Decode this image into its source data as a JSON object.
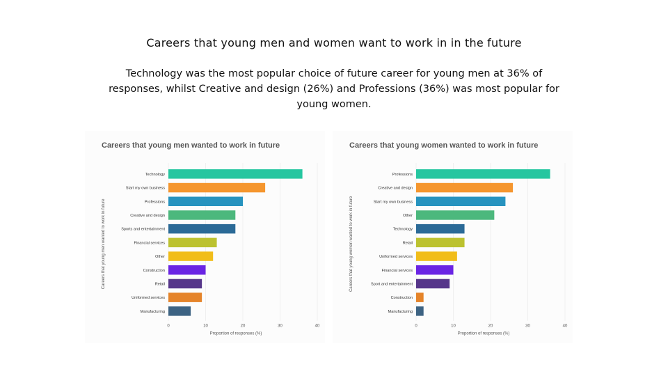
{
  "slide": {
    "title": "Careers that young men and women want to work in in the future",
    "subtitle": "Technology was the most popular choice of future career for young men at 36% of responses, whilst Creative and design (26%) and Professions (36%) was most popular for young women."
  },
  "chart_data": [
    {
      "type": "bar",
      "orientation": "horizontal",
      "title": "Careers that young men wanted to work in future",
      "xlabel": "Proportion of responses (%)",
      "ylabel": "Careers that young men wanted to work in future",
      "xlim": [
        0,
        40
      ],
      "xticks": [
        0,
        10,
        20,
        30,
        40
      ],
      "grid": true,
      "categories": [
        "Technology",
        "Start my own business",
        "Professions",
        "Creative and design",
        "Sports and entertainment",
        "Financial services",
        "Other",
        "Construction",
        "Retail",
        "Uniformed services",
        "Manufacturing"
      ],
      "values": [
        36,
        26,
        20,
        18,
        18,
        13,
        12,
        10,
        9,
        9,
        6
      ],
      "colors": [
        "#26c6a0",
        "#f5962e",
        "#2793bf",
        "#4cb87d",
        "#2b6a97",
        "#bcc230",
        "#f1bd1a",
        "#6a24e4",
        "#56368a",
        "#e5842a",
        "#3d6383"
      ]
    },
    {
      "type": "bar",
      "orientation": "horizontal",
      "title": "Careers that young women wanted to work in future",
      "xlabel": "Proportion of responses (%)",
      "ylabel": "Careers that young women wanted to work in future",
      "xlim": [
        0,
        40
      ],
      "xticks": [
        0,
        10,
        20,
        30,
        40
      ],
      "grid": true,
      "categories": [
        "Professions",
        "Creative and design",
        "Start my own business",
        "Other",
        "Technology",
        "Retail",
        "Uniformed services",
        "Financial services",
        "Sport and entertainment",
        "Construction",
        "Manufacturing"
      ],
      "values": [
        36,
        26,
        24,
        21,
        13,
        13,
        11,
        10,
        9,
        2,
        2
      ],
      "colors": [
        "#26c6a0",
        "#f5962e",
        "#2793bf",
        "#4cb87d",
        "#2b6a97",
        "#bcc230",
        "#f1bd1a",
        "#6a24e4",
        "#56368a",
        "#e5842a",
        "#3d6383"
      ]
    }
  ]
}
